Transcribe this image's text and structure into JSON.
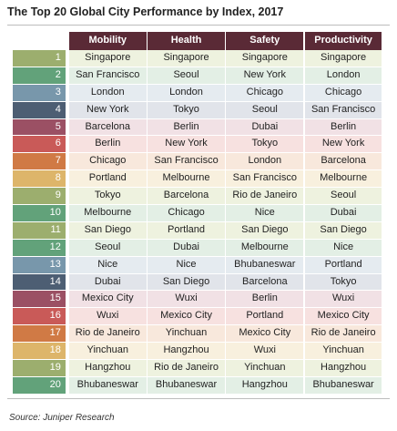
{
  "title": "The Top 20 Global City Performance by Index, 2017",
  "columns": [
    "Mobility",
    "Health",
    "Safety",
    "Productivity"
  ],
  "rows": [
    {
      "rank": "1",
      "rank_color": "#9cae6e",
      "bg": "#eef2df",
      "cells": [
        "Singapore",
        "Singapore",
        "Singapore",
        "Singapore"
      ]
    },
    {
      "rank": "2",
      "rank_color": "#62a27a",
      "bg": "#e3efe5",
      "cells": [
        "San Francisco",
        "Seoul",
        "New York",
        "London"
      ]
    },
    {
      "rank": "3",
      "rank_color": "#7897ab",
      "bg": "#e5ebf0",
      "cells": [
        "London",
        "London",
        "Chicago",
        "Chicago"
      ]
    },
    {
      "rank": "4",
      "rank_color": "#4d5e73",
      "bg": "#e1e4ea",
      "cells": [
        "New York",
        "Tokyo",
        "Seoul",
        "San Francisco"
      ]
    },
    {
      "rank": "5",
      "rank_color": "#9b5064",
      "bg": "#f1e1e5",
      "cells": [
        "Barcelona",
        "Berlin",
        "Dubai",
        "Berlin"
      ]
    },
    {
      "rank": "6",
      "rank_color": "#c95a58",
      "bg": "#f7e1e0",
      "cells": [
        "Berlin",
        "New York",
        "Tokyo",
        "New York"
      ]
    },
    {
      "rank": "7",
      "rank_color": "#d07a45",
      "bg": "#f8e8dc",
      "cells": [
        "Chicago",
        "San Francisco",
        "London",
        "Barcelona"
      ]
    },
    {
      "rank": "8",
      "rank_color": "#ddb56a",
      "bg": "#f8f0de",
      "cells": [
        "Portland",
        "Melbourne",
        "San Francisco",
        "Melbourne"
      ]
    },
    {
      "rank": "9",
      "rank_color": "#9cae6e",
      "bg": "#eef2df",
      "cells": [
        "Tokyo",
        "Barcelona",
        "Rio de Janeiro",
        "Seoul"
      ]
    },
    {
      "rank": "10",
      "rank_color": "#62a27a",
      "bg": "#e3efe5",
      "cells": [
        "Melbourne",
        "Chicago",
        "Nice",
        "Dubai"
      ]
    },
    {
      "rank": "11",
      "rank_color": "#9cae6e",
      "bg": "#eef2df",
      "cells": [
        "San Diego",
        "Portland",
        "San Diego",
        "San Diego"
      ]
    },
    {
      "rank": "12",
      "rank_color": "#62a27a",
      "bg": "#e3efe5",
      "cells": [
        "Seoul",
        "Dubai",
        "Melbourne",
        "Nice"
      ]
    },
    {
      "rank": "13",
      "rank_color": "#7897ab",
      "bg": "#e5ebf0",
      "cells": [
        "Nice",
        "Nice",
        "Bhubaneswar",
        "Portland"
      ]
    },
    {
      "rank": "14",
      "rank_color": "#4d5e73",
      "bg": "#e1e4ea",
      "cells": [
        "Dubai",
        "San Diego",
        "Barcelona",
        "Tokyo"
      ]
    },
    {
      "rank": "15",
      "rank_color": "#9b5064",
      "bg": "#f1e1e5",
      "cells": [
        "Mexico City",
        "Wuxi",
        "Berlin",
        "Wuxi"
      ]
    },
    {
      "rank": "16",
      "rank_color": "#c95a58",
      "bg": "#f7e1e0",
      "cells": [
        "Wuxi",
        "Mexico City",
        "Portland",
        "Mexico City"
      ]
    },
    {
      "rank": "17",
      "rank_color": "#d07a45",
      "bg": "#f8e8dc",
      "cells": [
        "Rio de Janeiro",
        "Yinchuan",
        "Mexico City",
        "Rio de Janeiro"
      ]
    },
    {
      "rank": "18",
      "rank_color": "#ddb56a",
      "bg": "#f8f0de",
      "cells": [
        "Yinchuan",
        "Hangzhou",
        "Wuxi",
        "Yinchuan"
      ]
    },
    {
      "rank": "19",
      "rank_color": "#9cae6e",
      "bg": "#eef2df",
      "cells": [
        "Hangzhou",
        "Rio de Janeiro",
        "Yinchuan",
        "Hangzhou"
      ]
    },
    {
      "rank": "20",
      "rank_color": "#62a27a",
      "bg": "#e3efe5",
      "cells": [
        "Bhubaneswar",
        "Bhubaneswar",
        "Hangzhou",
        "Bhubaneswar"
      ]
    }
  ],
  "source": "Source: Juniper Research",
  "colors": {
    "header_bg": "#5a2a36",
    "header_text": "#ffffff"
  }
}
